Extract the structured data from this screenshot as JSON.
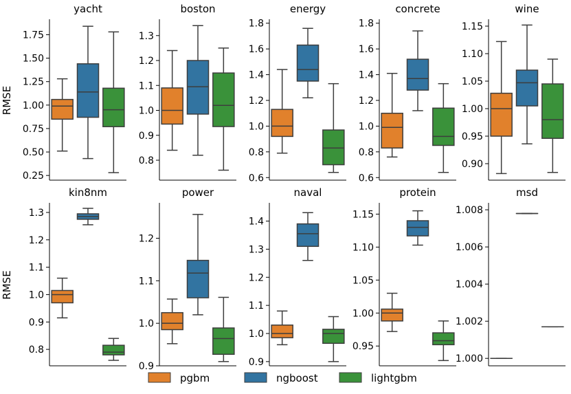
{
  "chart_data": {
    "type": "boxplot",
    "ylabel": "RMSE",
    "legend": {
      "placement": "bottom-center",
      "entries": [
        {
          "name": "pgbm",
          "color": "#e1812c"
        },
        {
          "name": "ngboost",
          "color": "#3274a1"
        },
        {
          "name": "lightgbm",
          "color": "#3a923a"
        }
      ]
    },
    "panels": [
      {
        "title": "yacht",
        "ylim": [
          0.2,
          1.9
        ],
        "yticks": [
          0.25,
          0.5,
          0.75,
          1.0,
          1.25,
          1.5,
          1.75
        ],
        "yticklabels": [
          "0.25",
          "0.50",
          "0.75",
          "1.00",
          "1.25",
          "1.50",
          "1.75"
        ],
        "show_ylabel": true,
        "boxes": [
          {
            "series": "pgbm",
            "whislo": 0.51,
            "q1": 0.85,
            "med": 0.99,
            "q3": 1.06,
            "whishi": 1.28
          },
          {
            "series": "ngboost",
            "whislo": 0.43,
            "q1": 0.87,
            "med": 1.14,
            "q3": 1.44,
            "whishi": 1.84
          },
          {
            "series": "lightgbm",
            "whislo": 0.28,
            "q1": 0.77,
            "med": 0.95,
            "q3": 1.18,
            "whishi": 1.78
          }
        ]
      },
      {
        "title": "boston",
        "ylim": [
          0.72,
          1.36
        ],
        "yticks": [
          0.8,
          0.9,
          1.0,
          1.1,
          1.2,
          1.3
        ],
        "yticklabels": [
          "0.8",
          "0.9",
          "1.0",
          "1.1",
          "1.2",
          "1.3"
        ],
        "show_ylabel": false,
        "boxes": [
          {
            "series": "pgbm",
            "whislo": 0.84,
            "q1": 0.945,
            "med": 1.0,
            "q3": 1.09,
            "whishi": 1.24
          },
          {
            "series": "ngboost",
            "whislo": 0.82,
            "q1": 0.985,
            "med": 1.095,
            "q3": 1.2,
            "whishi": 1.34
          },
          {
            "series": "lightgbm",
            "whislo": 0.76,
            "q1": 0.935,
            "med": 1.02,
            "q3": 1.15,
            "whishi": 1.25
          }
        ]
      },
      {
        "title": "energy",
        "ylim": [
          0.58,
          1.82
        ],
        "yticks": [
          0.6,
          0.8,
          1.0,
          1.2,
          1.4,
          1.6,
          1.8
        ],
        "yticklabels": [
          "0.6",
          "0.8",
          "1.0",
          "1.2",
          "1.4",
          "1.6",
          "1.8"
        ],
        "show_ylabel": false,
        "boxes": [
          {
            "series": "pgbm",
            "whislo": 0.79,
            "q1": 0.92,
            "med": 1.0,
            "q3": 1.13,
            "whishi": 1.44
          },
          {
            "series": "ngboost",
            "whislo": 1.22,
            "q1": 1.35,
            "med": 1.44,
            "q3": 1.63,
            "whishi": 1.76
          },
          {
            "series": "lightgbm",
            "whislo": 0.64,
            "q1": 0.7,
            "med": 0.83,
            "q3": 0.97,
            "whishi": 1.33
          }
        ]
      },
      {
        "title": "concrete",
        "ylim": [
          0.58,
          1.82
        ],
        "yticks": [
          0.6,
          0.8,
          1.0,
          1.2,
          1.4,
          1.6,
          1.8
        ],
        "yticklabels": [
          "0.6",
          "0.8",
          "1.0",
          "1.2",
          "1.4",
          "1.6",
          "1.8"
        ],
        "show_ylabel": false,
        "boxes": [
          {
            "series": "pgbm",
            "whislo": 0.76,
            "q1": 0.83,
            "med": 0.99,
            "q3": 1.1,
            "whishi": 1.41
          },
          {
            "series": "ngboost",
            "whislo": 1.12,
            "q1": 1.28,
            "med": 1.37,
            "q3": 1.52,
            "whishi": 1.74
          },
          {
            "series": "lightgbm",
            "whislo": 0.64,
            "q1": 0.85,
            "med": 0.92,
            "q3": 1.14,
            "whishi": 1.33
          }
        ]
      },
      {
        "title": "wine",
        "ylim": [
          0.87,
          1.16
        ],
        "yticks": [
          0.9,
          0.95,
          1.0,
          1.05,
          1.1,
          1.15
        ],
        "yticklabels": [
          "0.90",
          "0.95",
          "1.00",
          "1.05",
          "1.10",
          "1.15"
        ],
        "show_ylabel": false,
        "boxes": [
          {
            "series": "pgbm",
            "whislo": 0.882,
            "q1": 0.95,
            "med": 1.0,
            "q3": 1.028,
            "whishi": 1.122
          },
          {
            "series": "ngboost",
            "whislo": 0.936,
            "q1": 1.005,
            "med": 1.047,
            "q3": 1.07,
            "whishi": 1.152
          },
          {
            "series": "lightgbm",
            "whislo": 0.884,
            "q1": 0.946,
            "med": 0.98,
            "q3": 1.045,
            "whishi": 1.09
          }
        ]
      },
      {
        "title": "kin8nm",
        "ylim": [
          0.74,
          1.33
        ],
        "yticks": [
          0.8,
          0.9,
          1.0,
          1.1,
          1.2,
          1.3
        ],
        "yticklabels": [
          "0.8",
          "0.9",
          "1.0",
          "1.1",
          "1.2",
          "1.3"
        ],
        "show_ylabel": true,
        "boxes": [
          {
            "series": "pgbm",
            "whislo": 0.915,
            "q1": 0.97,
            "med": 1.0,
            "q3": 1.015,
            "whishi": 1.06
          },
          {
            "series": "ngboost",
            "whislo": 1.255,
            "q1": 1.275,
            "med": 1.285,
            "q3": 1.295,
            "whishi": 1.315
          },
          {
            "series": "lightgbm",
            "whislo": 0.76,
            "q1": 0.78,
            "med": 0.79,
            "q3": 0.815,
            "whishi": 0.84
          }
        ]
      },
      {
        "title": "power",
        "ylim": [
          0.9,
          1.28
        ],
        "yticks": [
          0.9,
          1.0,
          1.1,
          1.2
        ],
        "yticklabels": [
          "0.9",
          "1.0",
          "1.1",
          "1.2"
        ],
        "show_ylabel": false,
        "boxes": [
          {
            "series": "pgbm",
            "whislo": 0.952,
            "q1": 0.985,
            "med": 1.0,
            "q3": 1.025,
            "whishi": 1.057
          },
          {
            "series": "ngboost",
            "whislo": 1.02,
            "q1": 1.06,
            "med": 1.118,
            "q3": 1.148,
            "whishi": 1.256
          },
          {
            "series": "lightgbm",
            "whislo": 0.91,
            "q1": 0.927,
            "med": 0.964,
            "q3": 0.989,
            "whishi": 1.061
          }
        ]
      },
      {
        "title": "naval",
        "ylim": [
          0.885,
          1.46
        ],
        "yticks": [
          0.9,
          1.0,
          1.1,
          1.2,
          1.3,
          1.4
        ],
        "yticklabels": [
          "0.9",
          "1.0",
          "1.1",
          "1.2",
          "1.3",
          "1.4"
        ],
        "show_ylabel": false,
        "boxes": [
          {
            "series": "pgbm",
            "whislo": 0.96,
            "q1": 0.985,
            "med": 1.0,
            "q3": 1.03,
            "whishi": 1.08
          },
          {
            "series": "ngboost",
            "whislo": 1.26,
            "q1": 1.31,
            "med": 1.355,
            "q3": 1.39,
            "whishi": 1.43
          },
          {
            "series": "lightgbm",
            "whislo": 0.9,
            "q1": 0.965,
            "med": 1.0,
            "q3": 1.015,
            "whishi": 1.06
          }
        ]
      },
      {
        "title": "protein",
        "ylim": [
          0.92,
          1.165
        ],
        "yticks": [
          0.95,
          1.0,
          1.05,
          1.1,
          1.15
        ],
        "yticklabels": [
          "0.95",
          "1.00",
          "1.05",
          "1.10",
          "1.15"
        ],
        "show_ylabel": false,
        "boxes": [
          {
            "series": "pgbm",
            "whislo": 0.972,
            "q1": 0.988,
            "med": 1.0,
            "q3": 1.006,
            "whishi": 1.03
          },
          {
            "series": "ngboost",
            "whislo": 1.103,
            "q1": 1.117,
            "med": 1.13,
            "q3": 1.14,
            "whishi": 1.155
          },
          {
            "series": "lightgbm",
            "whislo": 0.928,
            "q1": 0.952,
            "med": 0.958,
            "q3": 0.97,
            "whishi": 0.988
          }
        ]
      },
      {
        "title": "msd",
        "ylim": [
          0.9996,
          1.0083
        ],
        "yticks": [
          1.0,
          1.002,
          1.004,
          1.006,
          1.008
        ],
        "yticklabels": [
          "1.000",
          "1.002",
          "1.004",
          "1.006",
          "1.008"
        ],
        "show_ylabel": false,
        "boxes": [
          {
            "series": "pgbm",
            "whislo": 1.0,
            "q1": 1.0,
            "med": 1.0,
            "q3": 1.0,
            "whishi": 1.0
          },
          {
            "series": "ngboost",
            "whislo": 1.0078,
            "q1": 1.0078,
            "med": 1.0078,
            "q3": 1.0078,
            "whishi": 1.0078
          },
          {
            "series": "lightgbm",
            "whislo": 1.0017,
            "q1": 1.0017,
            "med": 1.0017,
            "q3": 1.0017,
            "whishi": 1.0017
          }
        ]
      }
    ]
  }
}
